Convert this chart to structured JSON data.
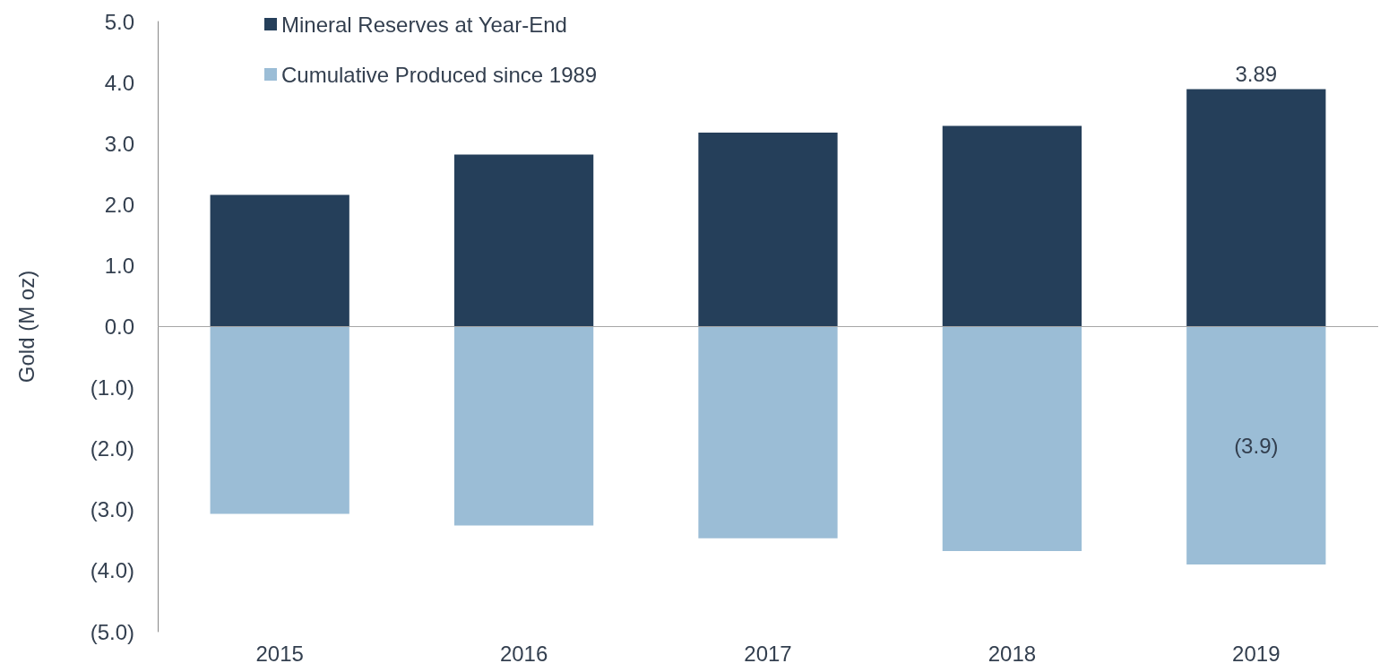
{
  "chart_data": {
    "type": "bar",
    "ylabel": "Gold (M oz)",
    "categories": [
      "2015",
      "2016",
      "2017",
      "2018",
      "2019"
    ],
    "stacked": true,
    "series": [
      {
        "name": "Mineral Reserves at Year-End",
        "color": "#253f5a",
        "values": [
          2.16,
          2.82,
          3.18,
          3.29,
          3.89
        ],
        "value_labels": [
          null,
          null,
          null,
          null,
          "3.89"
        ]
      },
      {
        "name": "Cumulative Produced since 1989",
        "color": "#9bbdd6",
        "values": [
          -3.07,
          -3.26,
          -3.47,
          -3.68,
          -3.9
        ],
        "value_labels": [
          null,
          null,
          null,
          null,
          "(3.9)"
        ]
      }
    ],
    "ylim": [
      -5,
      5
    ],
    "yticks": [
      {
        "value": -5,
        "label": "(5.0)"
      },
      {
        "value": -4,
        "label": "(4.0)"
      },
      {
        "value": -3,
        "label": "(3.0)"
      },
      {
        "value": -2,
        "label": "(2.0)"
      },
      {
        "value": -1,
        "label": "(1.0)"
      },
      {
        "value": 0,
        "label": "0.0"
      },
      {
        "value": 1,
        "label": "1.0"
      },
      {
        "value": 2,
        "label": "2.0"
      },
      {
        "value": 3,
        "label": "3.0"
      },
      {
        "value": 4,
        "label": "4.0"
      },
      {
        "value": 5,
        "label": "5.0"
      }
    ],
    "ref_lines": [
      {
        "axis": "y",
        "value": 0,
        "color": "#a6a6a6"
      }
    ],
    "grid": false,
    "legend": "top left"
  }
}
